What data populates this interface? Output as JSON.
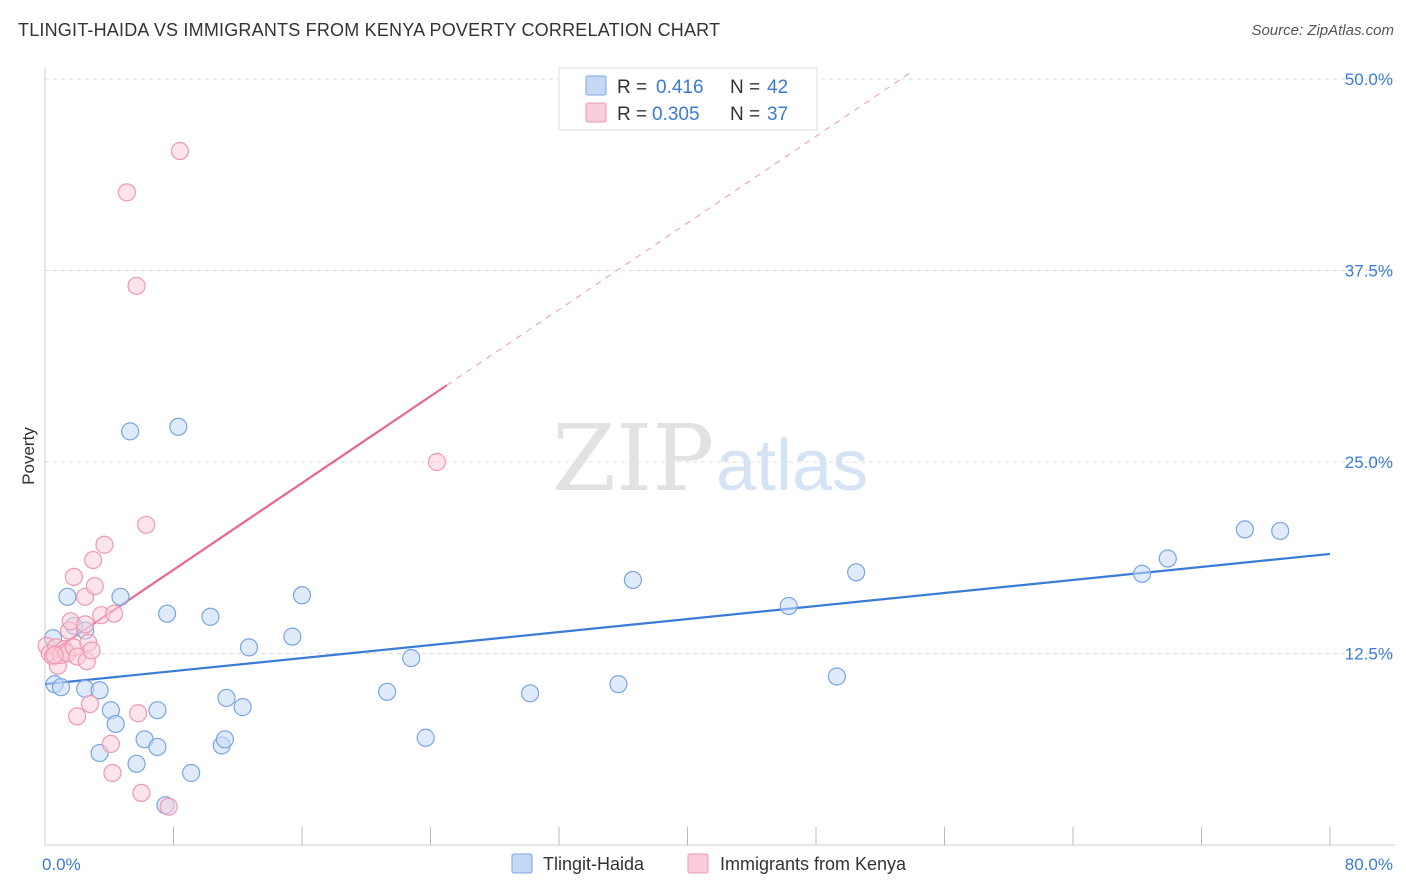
{
  "title": "TLINGIT-HAIDA VS IMMIGRANTS FROM KENYA POVERTY CORRELATION CHART",
  "source": "Source: ZipAtlas.com",
  "watermark": {
    "zip": "ZIP",
    "atlas": "atlas"
  },
  "colors": {
    "blue": "#3a7bd5",
    "blue_fill": "#c5d9f5",
    "blue_stroke": "#7aa5e0",
    "pink": "#e8678f",
    "pink_fill": "#f9cdd9",
    "pink_stroke": "#ee98b3",
    "grid": "#dddddd"
  },
  "legend": {
    "rows": [
      {
        "r_label": "R = ",
        "r_value": "0.416",
        "n_label": "N = ",
        "n_value": "42",
        "series": "blue"
      },
      {
        "r_label": "R = ",
        "r_value": "0.305",
        "n_label": "N = ",
        "n_value": "37",
        "series": "pink"
      }
    ]
  },
  "bottom_legend": [
    {
      "label": "Tlingit-Haida",
      "series": "blue"
    },
    {
      "label": "Immigrants from Kenya",
      "series": "pink"
    }
  ],
  "chart_data": {
    "type": "scatter",
    "title": "TLINGIT-HAIDA VS IMMIGRANTS FROM KENYA POVERTY CORRELATION CHART",
    "xlabel": "",
    "ylabel": "Poverty",
    "xlim": [
      0,
      80
    ],
    "ylim": [
      0,
      50
    ],
    "x_tick_labels": [
      {
        "value": 0,
        "label": "0.0%"
      },
      {
        "value": 80,
        "label": "80.0%"
      }
    ],
    "y_tick_labels": [
      {
        "value": 12.5,
        "label": "12.5%"
      },
      {
        "value": 25,
        "label": "25.0%"
      },
      {
        "value": 37.5,
        "label": "37.5%"
      },
      {
        "value": 50,
        "label": "50.0%"
      }
    ],
    "x_minor_ticks": [
      8,
      16,
      24,
      32,
      40,
      48,
      56,
      64,
      72,
      80
    ],
    "series": [
      {
        "name": "Tlingit-Haida",
        "color": "blue",
        "points": [
          [
            0.5,
            13.5
          ],
          [
            0.6,
            10.5
          ],
          [
            1.0,
            10.3
          ],
          [
            1.4,
            16.2
          ],
          [
            1.8,
            14.3
          ],
          [
            2.5,
            14.0
          ],
          [
            2.5,
            10.2
          ],
          [
            3.4,
            10.1
          ],
          [
            3.4,
            6.0
          ],
          [
            4.1,
            8.8
          ],
          [
            4.4,
            7.9
          ],
          [
            4.7,
            16.2
          ],
          [
            5.3,
            27.0
          ],
          [
            5.7,
            5.3
          ],
          [
            6.2,
            6.9
          ],
          [
            7.0,
            8.8
          ],
          [
            7.0,
            6.4
          ],
          [
            7.6,
            15.1
          ],
          [
            7.5,
            2.6
          ],
          [
            8.3,
            27.3
          ],
          [
            9.1,
            4.7
          ],
          [
            10.3,
            14.9
          ],
          [
            11.0,
            6.5
          ],
          [
            11.2,
            6.9
          ],
          [
            11.3,
            9.6
          ],
          [
            12.3,
            9.0
          ],
          [
            12.7,
            12.9
          ],
          [
            15.4,
            13.6
          ],
          [
            16.0,
            16.3
          ],
          [
            21.3,
            10.0
          ],
          [
            22.8,
            12.2
          ],
          [
            23.7,
            7.0
          ],
          [
            30.2,
            9.9
          ],
          [
            35.7,
            10.5
          ],
          [
            36.6,
            17.3
          ],
          [
            46.3,
            15.6
          ],
          [
            49.3,
            11.0
          ],
          [
            50.5,
            17.8
          ],
          [
            68.3,
            17.7
          ],
          [
            69.9,
            18.7
          ],
          [
            74.7,
            20.6
          ],
          [
            76.9,
            20.5
          ]
        ],
        "trend": {
          "x0": 0,
          "y0": 10.5,
          "x1": 80,
          "y1": 19.0
        }
      },
      {
        "name": "Immigrants from Kenya",
        "color": "pink",
        "points": [
          [
            0.1,
            13.0
          ],
          [
            0.3,
            12.5
          ],
          [
            0.5,
            12.3
          ],
          [
            0.7,
            12.9
          ],
          [
            0.8,
            11.7
          ],
          [
            1.0,
            12.4
          ],
          [
            1.2,
            12.8
          ],
          [
            1.3,
            12.6
          ],
          [
            1.4,
            12.5
          ],
          [
            1.5,
            14.0
          ],
          [
            1.6,
            14.6
          ],
          [
            1.8,
            12.9
          ],
          [
            1.8,
            17.5
          ],
          [
            2.0,
            12.3
          ],
          [
            2.5,
            14.4
          ],
          [
            2.5,
            16.2
          ],
          [
            2.6,
            12.0
          ],
          [
            2.7,
            13.2
          ],
          [
            2.9,
            12.7
          ],
          [
            2.8,
            9.2
          ],
          [
            3.0,
            18.6
          ],
          [
            3.1,
            16.9
          ],
          [
            3.5,
            15.0
          ],
          [
            3.7,
            19.6
          ],
          [
            2.0,
            8.4
          ],
          [
            4.1,
            6.6
          ],
          [
            4.2,
            4.7
          ],
          [
            4.3,
            15.1
          ],
          [
            5.1,
            42.6
          ],
          [
            5.7,
            36.5
          ],
          [
            5.8,
            8.6
          ],
          [
            6.0,
            3.4
          ],
          [
            6.3,
            20.9
          ],
          [
            7.7,
            2.5
          ],
          [
            8.4,
            45.3
          ],
          [
            24.4,
            25.0
          ],
          [
            0.6,
            12.4
          ]
        ],
        "trend": {
          "x0": 0,
          "y0": 12.3,
          "x1": 25,
          "y1": 30.0
        },
        "trend_extension": {
          "x0": 25,
          "y0": 30.0,
          "x1": 54,
          "y1": 50.5
        }
      }
    ]
  }
}
